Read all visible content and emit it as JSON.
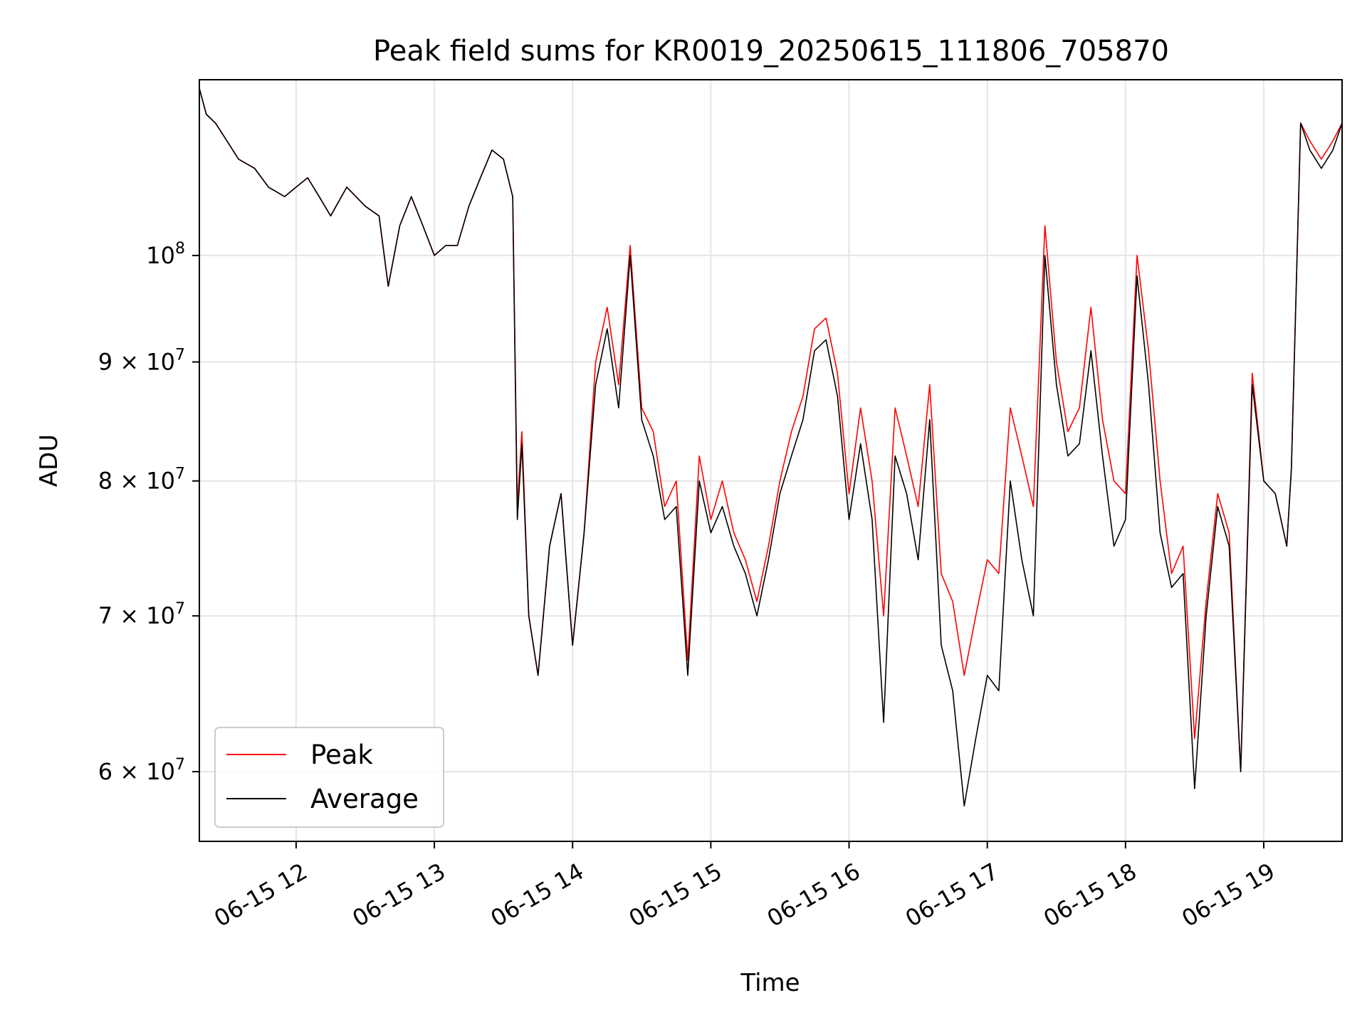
{
  "chart_data": {
    "type": "line",
    "title": "Peak field sums for KR0019_20250615_111806_705870",
    "xlabel": "Time",
    "ylabel": "ADU",
    "x_scale": "time",
    "y_scale": "log",
    "xlim": [
      "2025-06-15 11:18",
      "2025-06-15 19:34"
    ],
    "ylim": [
      56000000,
      119000000
    ],
    "x_ticks": [
      {
        "value": "2025-06-15 12:00",
        "label": "06-15 12"
      },
      {
        "value": "2025-06-15 13:00",
        "label": "06-15 13"
      },
      {
        "value": "2025-06-15 14:00",
        "label": "06-15 14"
      },
      {
        "value": "2025-06-15 15:00",
        "label": "06-15 15"
      },
      {
        "value": "2025-06-15 16:00",
        "label": "06-15 16"
      },
      {
        "value": "2025-06-15 17:00",
        "label": "06-15 17"
      },
      {
        "value": "2025-06-15 18:00",
        "label": "06-15 18"
      },
      {
        "value": "2025-06-15 19:00",
        "label": "06-15 19"
      }
    ],
    "y_ticks": [
      {
        "value": 60000000,
        "label_base": "6 × 10",
        "label_exp": "7"
      },
      {
        "value": 70000000,
        "label_base": "7 × 10",
        "label_exp": "7"
      },
      {
        "value": 80000000,
        "label_base": "8 × 10",
        "label_exp": "7"
      },
      {
        "value": 90000000,
        "label_base": "9 × 10",
        "label_exp": "7"
      },
      {
        "value": 100000000,
        "label_base": "10",
        "label_exp": "8"
      }
    ],
    "grid": true,
    "legend_position": "lower-left",
    "series": [
      {
        "name": "Peak",
        "color": "#ff0000",
        "x": [
          "2025-06-15 11:18",
          "2025-06-15 11:21",
          "2025-06-15 11:25",
          "2025-06-15 11:30",
          "2025-06-15 11:35",
          "2025-06-15 11:42",
          "2025-06-15 11:48",
          "2025-06-15 11:55",
          "2025-06-15 12:00",
          "2025-06-15 12:05",
          "2025-06-15 12:10",
          "2025-06-15 12:15",
          "2025-06-15 12:22",
          "2025-06-15 12:30",
          "2025-06-15 12:36",
          "2025-06-15 12:40",
          "2025-06-15 12:45",
          "2025-06-15 12:50",
          "2025-06-15 12:55",
          "2025-06-15 13:00",
          "2025-06-15 13:05",
          "2025-06-15 13:10",
          "2025-06-15 13:15",
          "2025-06-15 13:20",
          "2025-06-15 13:25",
          "2025-06-15 13:30",
          "2025-06-15 13:34",
          "2025-06-15 13:36",
          "2025-06-15 13:38",
          "2025-06-15 13:41",
          "2025-06-15 13:45",
          "2025-06-15 13:50",
          "2025-06-15 13:55",
          "2025-06-15 14:00",
          "2025-06-15 14:05",
          "2025-06-15 14:10",
          "2025-06-15 14:15",
          "2025-06-15 14:20",
          "2025-06-15 14:25",
          "2025-06-15 14:30",
          "2025-06-15 14:35",
          "2025-06-15 14:40",
          "2025-06-15 14:45",
          "2025-06-15 14:50",
          "2025-06-15 14:55",
          "2025-06-15 15:00",
          "2025-06-15 15:05",
          "2025-06-15 15:10",
          "2025-06-15 15:15",
          "2025-06-15 15:20",
          "2025-06-15 15:25",
          "2025-06-15 15:30",
          "2025-06-15 15:35",
          "2025-06-15 15:40",
          "2025-06-15 15:45",
          "2025-06-15 15:50",
          "2025-06-15 15:55",
          "2025-06-15 16:00",
          "2025-06-15 16:05",
          "2025-06-15 16:10",
          "2025-06-15 16:15",
          "2025-06-15 16:20",
          "2025-06-15 16:25",
          "2025-06-15 16:30",
          "2025-06-15 16:35",
          "2025-06-15 16:40",
          "2025-06-15 16:45",
          "2025-06-15 16:50",
          "2025-06-15 16:55",
          "2025-06-15 17:00",
          "2025-06-15 17:05",
          "2025-06-15 17:10",
          "2025-06-15 17:15",
          "2025-06-15 17:20",
          "2025-06-15 17:25",
          "2025-06-15 17:30",
          "2025-06-15 17:35",
          "2025-06-15 17:40",
          "2025-06-15 17:45",
          "2025-06-15 17:50",
          "2025-06-15 17:55",
          "2025-06-15 18:00",
          "2025-06-15 18:05",
          "2025-06-15 18:10",
          "2025-06-15 18:15",
          "2025-06-15 18:20",
          "2025-06-15 18:25",
          "2025-06-15 18:30",
          "2025-06-15 18:35",
          "2025-06-15 18:40",
          "2025-06-15 18:45",
          "2025-06-15 18:50",
          "2025-06-15 18:55",
          "2025-06-15 19:00",
          "2025-06-15 19:05",
          "2025-06-15 19:10",
          "2025-06-15 19:12",
          "2025-06-15 19:16",
          "2025-06-15 19:20",
          "2025-06-15 19:25",
          "2025-06-15 19:30",
          "2025-06-15 19:34"
        ],
        "values": [
          118000000,
          115000000,
          114000000,
          112000000,
          110000000,
          109000000,
          107000000,
          106000000,
          107000000,
          108000000,
          106000000,
          104000000,
          107000000,
          105000000,
          104000000,
          97000000,
          103000000,
          106000000,
          103000000,
          100000000,
          101000000,
          101000000,
          105000000,
          108000000,
          111000000,
          110000000,
          106000000,
          78000000,
          84000000,
          70000000,
          66000000,
          75000000,
          79000000,
          68000000,
          76000000,
          90000000,
          95000000,
          88000000,
          101000000,
          86000000,
          84000000,
          78000000,
          80000000,
          67000000,
          82000000,
          77000000,
          80000000,
          76000000,
          74000000,
          71000000,
          75000000,
          80000000,
          84000000,
          87000000,
          93000000,
          94000000,
          89000000,
          79000000,
          86000000,
          80000000,
          70000000,
          86000000,
          82000000,
          78000000,
          88000000,
          73000000,
          71000000,
          66000000,
          70000000,
          74000000,
          73000000,
          86000000,
          82000000,
          78000000,
          103000000,
          90000000,
          84000000,
          86000000,
          95000000,
          85000000,
          80000000,
          79000000,
          100000000,
          91000000,
          80000000,
          73000000,
          75000000,
          62000000,
          71000000,
          79000000,
          76000000,
          60000000,
          89000000,
          80000000,
          79000000,
          75000000,
          81000000,
          114000000,
          112000000,
          110000000,
          112000000,
          114000000
        ]
      },
      {
        "name": "Average",
        "color": "#000000",
        "x": [
          "2025-06-15 11:18",
          "2025-06-15 11:21",
          "2025-06-15 11:25",
          "2025-06-15 11:30",
          "2025-06-15 11:35",
          "2025-06-15 11:42",
          "2025-06-15 11:48",
          "2025-06-15 11:55",
          "2025-06-15 12:00",
          "2025-06-15 12:05",
          "2025-06-15 12:10",
          "2025-06-15 12:15",
          "2025-06-15 12:22",
          "2025-06-15 12:30",
          "2025-06-15 12:36",
          "2025-06-15 12:40",
          "2025-06-15 12:45",
          "2025-06-15 12:50",
          "2025-06-15 12:55",
          "2025-06-15 13:00",
          "2025-06-15 13:05",
          "2025-06-15 13:10",
          "2025-06-15 13:15",
          "2025-06-15 13:20",
          "2025-06-15 13:25",
          "2025-06-15 13:30",
          "2025-06-15 13:34",
          "2025-06-15 13:36",
          "2025-06-15 13:38",
          "2025-06-15 13:41",
          "2025-06-15 13:45",
          "2025-06-15 13:50",
          "2025-06-15 13:55",
          "2025-06-15 14:00",
          "2025-06-15 14:05",
          "2025-06-15 14:10",
          "2025-06-15 14:15",
          "2025-06-15 14:20",
          "2025-06-15 14:25",
          "2025-06-15 14:30",
          "2025-06-15 14:35",
          "2025-06-15 14:40",
          "2025-06-15 14:45",
          "2025-06-15 14:50",
          "2025-06-15 14:55",
          "2025-06-15 15:00",
          "2025-06-15 15:05",
          "2025-06-15 15:10",
          "2025-06-15 15:15",
          "2025-06-15 15:20",
          "2025-06-15 15:25",
          "2025-06-15 15:30",
          "2025-06-15 15:35",
          "2025-06-15 15:40",
          "2025-06-15 15:45",
          "2025-06-15 15:50",
          "2025-06-15 15:55",
          "2025-06-15 16:00",
          "2025-06-15 16:05",
          "2025-06-15 16:10",
          "2025-06-15 16:15",
          "2025-06-15 16:20",
          "2025-06-15 16:25",
          "2025-06-15 16:30",
          "2025-06-15 16:35",
          "2025-06-15 16:40",
          "2025-06-15 16:45",
          "2025-06-15 16:50",
          "2025-06-15 16:55",
          "2025-06-15 17:00",
          "2025-06-15 17:05",
          "2025-06-15 17:10",
          "2025-06-15 17:15",
          "2025-06-15 17:20",
          "2025-06-15 17:25",
          "2025-06-15 17:30",
          "2025-06-15 17:35",
          "2025-06-15 17:40",
          "2025-06-15 17:45",
          "2025-06-15 17:50",
          "2025-06-15 17:55",
          "2025-06-15 18:00",
          "2025-06-15 18:05",
          "2025-06-15 18:10",
          "2025-06-15 18:15",
          "2025-06-15 18:20",
          "2025-06-15 18:25",
          "2025-06-15 18:30",
          "2025-06-15 18:35",
          "2025-06-15 18:40",
          "2025-06-15 18:45",
          "2025-06-15 18:50",
          "2025-06-15 18:55",
          "2025-06-15 19:00",
          "2025-06-15 19:05",
          "2025-06-15 19:10",
          "2025-06-15 19:12",
          "2025-06-15 19:16",
          "2025-06-15 19:20",
          "2025-06-15 19:25",
          "2025-06-15 19:30",
          "2025-06-15 19:34"
        ],
        "values": [
          118000000,
          115000000,
          114000000,
          112000000,
          110000000,
          109000000,
          107000000,
          106000000,
          107000000,
          108000000,
          106000000,
          104000000,
          107000000,
          105000000,
          104000000,
          97000000,
          103000000,
          106000000,
          103000000,
          100000000,
          101000000,
          101000000,
          105000000,
          108000000,
          111000000,
          110000000,
          106000000,
          77000000,
          83000000,
          70000000,
          66000000,
          75000000,
          79000000,
          68000000,
          76000000,
          88000000,
          93000000,
          86000000,
          100000000,
          85000000,
          82000000,
          77000000,
          78000000,
          66000000,
          80000000,
          76000000,
          78000000,
          75000000,
          73000000,
          70000000,
          74000000,
          79000000,
          82000000,
          85000000,
          91000000,
          92000000,
          87000000,
          77000000,
          83000000,
          77000000,
          63000000,
          82000000,
          79000000,
          74000000,
          85000000,
          68000000,
          65000000,
          58000000,
          62000000,
          66000000,
          65000000,
          80000000,
          74000000,
          70000000,
          100000000,
          88000000,
          82000000,
          83000000,
          91000000,
          82000000,
          75000000,
          77000000,
          98000000,
          88000000,
          76000000,
          72000000,
          73000000,
          59000000,
          70000000,
          78000000,
          75000000,
          60000000,
          88000000,
          80000000,
          79000000,
          75000000,
          81000000,
          114000000,
          111000000,
          109000000,
          111000000,
          114000000
        ]
      }
    ]
  }
}
